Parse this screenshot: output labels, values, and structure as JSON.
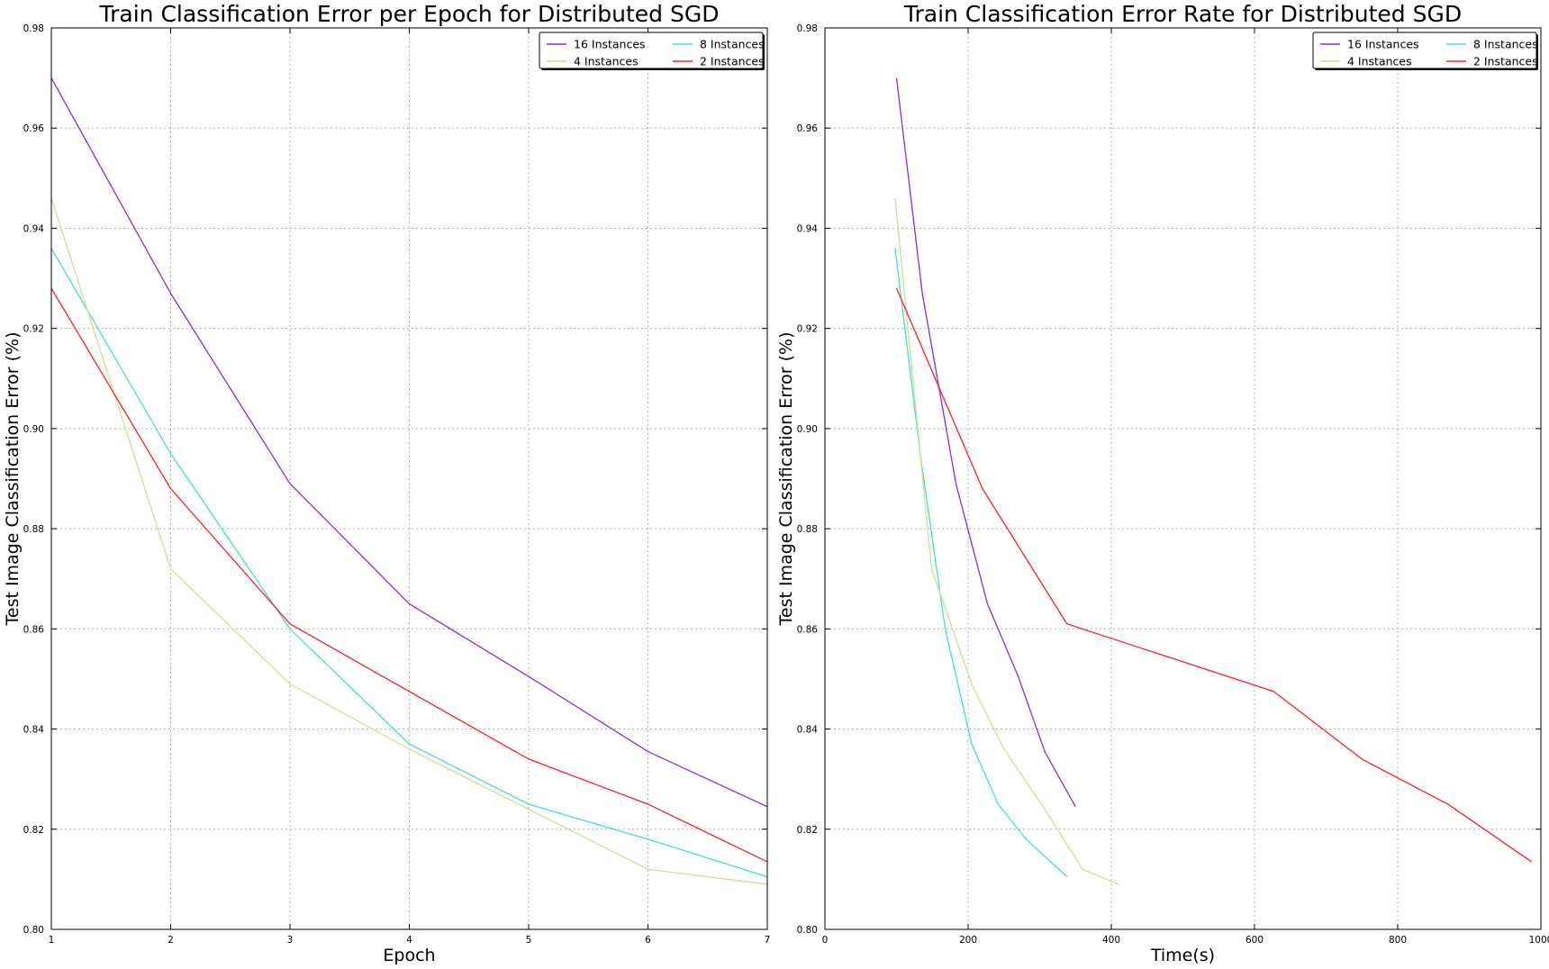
{
  "chart_data": [
    {
      "type": "line",
      "title": "Train Classification Error per Epoch for Distributed SGD",
      "xlabel": "Epoch",
      "ylabel": "Test Image Classification Error (%)",
      "xlim": [
        1,
        7
      ],
      "ylim": [
        0.8,
        0.98
      ],
      "xticks": [
        "1",
        "2",
        "3",
        "4",
        "5",
        "6",
        "7"
      ],
      "yticks": [
        "0.80",
        "0.82",
        "0.84",
        "0.86",
        "0.88",
        "0.90",
        "0.92",
        "0.94",
        "0.96",
        "0.98"
      ],
      "grid": true,
      "legend_position": "top-right",
      "legend_columns": 2,
      "series": [
        {
          "name": "16 Instances",
          "color": "#8a2be2",
          "x": [
            1,
            2,
            3,
            4,
            5,
            6,
            7
          ],
          "y": [
            0.97,
            0.927,
            0.889,
            0.865,
            0.8505,
            0.8355,
            0.8245
          ]
        },
        {
          "name": "8 Instances",
          "color": "#40e0d0",
          "x": [
            1,
            2,
            3,
            4,
            5,
            6,
            7
          ],
          "y": [
            0.936,
            0.895,
            0.86,
            0.837,
            0.825,
            0.818,
            0.8105
          ]
        },
        {
          "name": "4 Instances",
          "color": "#d4dd94",
          "x": [
            1,
            2,
            3,
            4,
            5,
            6,
            7
          ],
          "y": [
            0.946,
            0.872,
            0.849,
            0.836,
            0.824,
            0.812,
            0.809
          ]
        },
        {
          "name": "2 Instances",
          "color": "#ff2020",
          "x": [
            1,
            2,
            3,
            4,
            5,
            6,
            7
          ],
          "y": [
            0.928,
            0.888,
            0.861,
            0.8475,
            0.834,
            0.825,
            0.8135
          ]
        }
      ]
    },
    {
      "type": "line",
      "title": "Train Classification Error Rate for Distributed SGD",
      "xlabel": "Time(s)",
      "ylabel": "Test Image Classification Error (%)",
      "xlim": [
        0,
        1000
      ],
      "ylim": [
        0.8,
        0.98
      ],
      "xticks": [
        "0",
        "200",
        "400",
        "600",
        "800",
        "1000"
      ],
      "yticks": [
        "0.80",
        "0.82",
        "0.84",
        "0.86",
        "0.88",
        "0.90",
        "0.92",
        "0.94",
        "0.96",
        "0.98"
      ],
      "grid": true,
      "legend_position": "top-right",
      "legend_columns": 2,
      "series": [
        {
          "name": "16 Instances",
          "color": "#8a2be2",
          "x": [
            100,
            136,
            183,
            227,
            270,
            307,
            350
          ],
          "y": [
            0.97,
            0.927,
            0.889,
            0.865,
            0.8505,
            0.8355,
            0.8245
          ]
        },
        {
          "name": "8 Instances",
          "color": "#40e0d0",
          "x": [
            98,
            133,
            168,
            205,
            242,
            281,
            338
          ],
          "y": [
            0.936,
            0.895,
            0.86,
            0.837,
            0.825,
            0.818,
            0.8105
          ]
        },
        {
          "name": "4 Instances",
          "color": "#d4dd94",
          "x": [
            98,
            149,
            205,
            250,
            307,
            360,
            410
          ],
          "y": [
            0.946,
            0.872,
            0.849,
            0.836,
            0.824,
            0.812,
            0.809
          ]
        },
        {
          "name": "2 Instances",
          "color": "#ff2020",
          "x": [
            100,
            220,
            338,
            477,
            627,
            750,
            870,
            987
          ],
          "y": [
            0.928,
            0.888,
            0.861,
            0.8545,
            0.8475,
            0.834,
            0.825,
            0.8135
          ]
        }
      ]
    }
  ]
}
